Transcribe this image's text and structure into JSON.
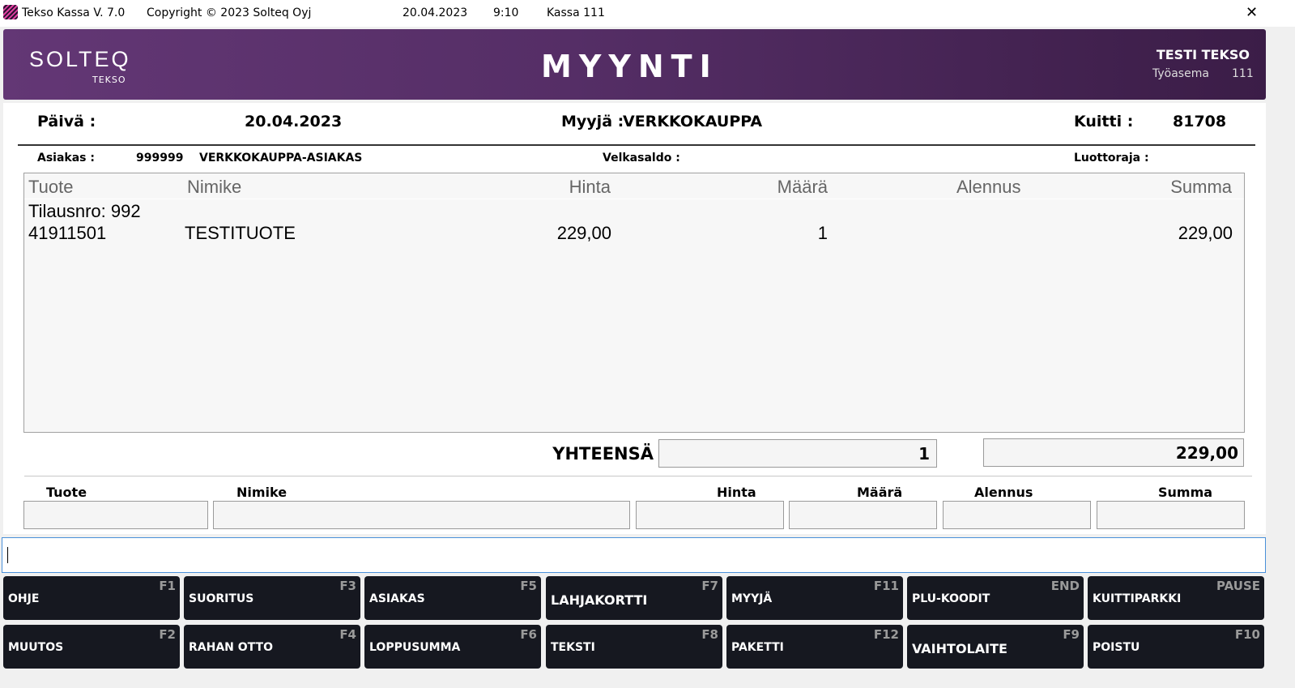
{
  "titlebar": {
    "app": "Tekso Kassa V. 7.0",
    "copyright": "Copyright © 2023 Solteq Oyj",
    "date": "20.04.2023",
    "time": "9:10",
    "register": "Kassa 111",
    "close": "✕"
  },
  "header": {
    "logo": "SOLTEQ",
    "logo_sub": "TEKSO",
    "title": "MYYNTI",
    "user": "TESTI TEKSO",
    "workstation_label": "Työasema",
    "workstation": "111"
  },
  "info": {
    "date_label": "Päivä :",
    "date": "20.04.2023",
    "seller_label": "Myyjä :",
    "seller": "VERKKOKAUPPA",
    "receipt_label": "Kuitti :",
    "receipt": "81708",
    "customer_label": "Asiakas :",
    "customer_id": "999999",
    "customer_name": "VERKKOKAUPPA-ASIAKAS",
    "debt_label": "Velkasaldo :",
    "credit_label": "Luottoraja :"
  },
  "table": {
    "headers": [
      "Tuote",
      "Nimike",
      "Hinta",
      "Määrä",
      "Alennus",
      "Summa"
    ],
    "order_line": "Tilausnro: 992",
    "rows": [
      {
        "code": "41911501",
        "name": "TESTITUOTE",
        "price": "229,00",
        "qty": "1",
        "discount": "",
        "sum": "229,00"
      }
    ]
  },
  "totals": {
    "label": "YHTEENSÄ",
    "qty": "1",
    "sum": "229,00"
  },
  "entry": {
    "labels": [
      "Tuote",
      "Nimike",
      "Hinta",
      "Määrä",
      "Alennus",
      "Summa"
    ]
  },
  "command": {
    "value": ""
  },
  "buttons": [
    {
      "label": "OHJE",
      "key": "F1"
    },
    {
      "label": "SUORITUS",
      "key": "F3"
    },
    {
      "label": "ASIAKAS",
      "key": "F5"
    },
    {
      "label": "LAHJAKORTTI",
      "key": "F7"
    },
    {
      "label": "MYYJÄ",
      "key": "F11"
    },
    {
      "label": "PLU-KOODIT",
      "key": "END"
    },
    {
      "label": "KUITTIPARKKI",
      "key": "PAUSE"
    },
    {
      "label": "MUUTOS",
      "key": "F2"
    },
    {
      "label": "RAHAN OTTO",
      "key": "F4"
    },
    {
      "label": "LOPPUSUMMA",
      "key": "F6"
    },
    {
      "label": "TEKSTI",
      "key": "F8"
    },
    {
      "label": "PAKETTI",
      "key": "F12"
    },
    {
      "label": "VAIHTOLAITE",
      "key": "F9"
    },
    {
      "label": "POISTU",
      "key": "F10"
    }
  ],
  "colors": {
    "header_start": "#633775",
    "header_end": "#3b1d47",
    "button_bg": "#161820",
    "input_focus": "#4a90d9"
  }
}
